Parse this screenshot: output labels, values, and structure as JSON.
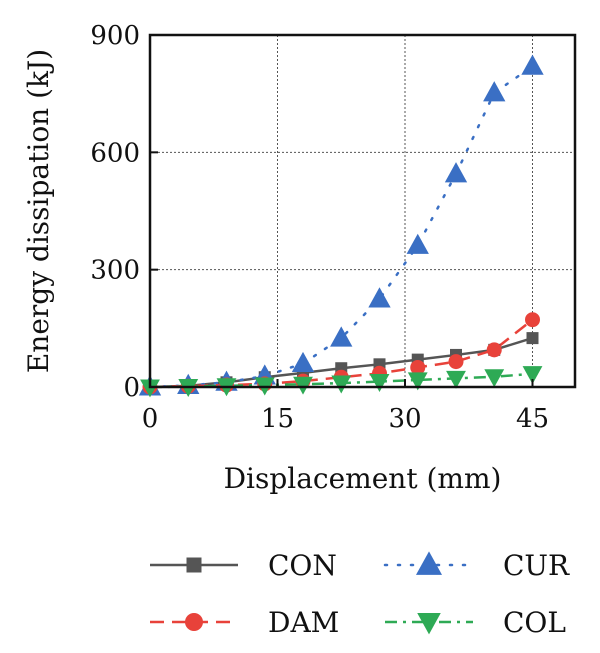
{
  "chart_data": {
    "type": "line",
    "xlabel": "Displacement (mm)",
    "ylabel": "Energy dissipation (kJ)",
    "xlim": [
      0,
      50
    ],
    "ylim": [
      0,
      900
    ],
    "xticks": [
      0,
      15,
      30,
      45
    ],
    "yticks": [
      0,
      300,
      600,
      900
    ],
    "grid": true,
    "legend_position": "bottom",
    "series": [
      {
        "name": "CON",
        "color": "#555555",
        "marker": "square",
        "line_style": "solid",
        "x": [
          0,
          4.5,
          9,
          13.5,
          18,
          22.5,
          27,
          31.5,
          36,
          40.5,
          45
        ],
        "y": [
          0,
          3,
          12,
          25,
          36,
          48,
          58,
          70,
          82,
          95,
          125
        ]
      },
      {
        "name": "CUR",
        "color": "#3a6fc4",
        "marker": "triangle-up",
        "line_style": "dotted",
        "x": [
          0,
          4.5,
          9,
          13.5,
          18,
          22.5,
          27,
          31.5,
          36,
          40.5,
          45
        ],
        "y": [
          0,
          4,
          12,
          28,
          60,
          125,
          225,
          362,
          545,
          752,
          820
        ]
      },
      {
        "name": "DAM",
        "color": "#e8423a",
        "marker": "circle",
        "line_style": "dashed",
        "x": [
          0,
          4.5,
          9,
          13.5,
          18,
          22.5,
          27,
          31.5,
          36,
          40.5,
          45
        ],
        "y": [
          0,
          2,
          5,
          8,
          15,
          25,
          35,
          50,
          65,
          95,
          172
        ]
      },
      {
        "name": "COL",
        "color": "#2eaa55",
        "marker": "triangle-down",
        "line_style": "dashdot",
        "x": [
          0,
          4.5,
          9,
          13.5,
          18,
          22.5,
          27,
          31.5,
          36,
          40.5,
          45
        ],
        "y": [
          0,
          1,
          3,
          5,
          7,
          10,
          14,
          18,
          22,
          26,
          34
        ]
      }
    ],
    "legend_order": [
      [
        "CON",
        "CUR"
      ],
      [
        "DAM",
        "COL"
      ]
    ]
  }
}
